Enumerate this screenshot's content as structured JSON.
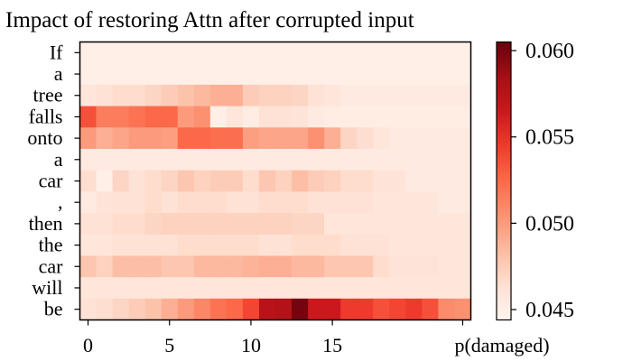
{
  "chart_data": {
    "type": "heatmap",
    "title": "Impact of restoring Attn after corrupted input",
    "rows": [
      "If",
      "a",
      "tree",
      "falls",
      "onto",
      "a",
      "car",
      ",",
      "then",
      "the",
      "car",
      "will",
      "be"
    ],
    "x_ticks": [
      "0",
      "5",
      "10",
      "15"
    ],
    "x_last_label": "p(damaged)",
    "colorbar": {
      "min": 0.0444,
      "max": 0.0605,
      "ticks": [
        "0.045",
        "0.050",
        "0.055",
        "0.060"
      ],
      "tick_values": [
        0.045,
        0.05,
        0.055,
        0.06
      ]
    },
    "colormap": "Reds",
    "values": [
      [
        0.045,
        0.045,
        0.045,
        0.045,
        0.045,
        0.045,
        0.045,
        0.045,
        0.045,
        0.045,
        0.045,
        0.045,
        0.045,
        0.045,
        0.045,
        0.045,
        0.045,
        0.045,
        0.045,
        0.045,
        0.045,
        0.045,
        0.045,
        0.045
      ],
      [
        0.045,
        0.045,
        0.045,
        0.045,
        0.045,
        0.045,
        0.045,
        0.045,
        0.045,
        0.045,
        0.045,
        0.045,
        0.045,
        0.045,
        0.045,
        0.045,
        0.045,
        0.045,
        0.045,
        0.045,
        0.045,
        0.045,
        0.045,
        0.045
      ],
      [
        0.0458,
        0.0462,
        0.0466,
        0.0466,
        0.047,
        0.0475,
        0.048,
        0.0485,
        0.049,
        0.049,
        0.0475,
        0.0472,
        0.0472,
        0.047,
        0.0462,
        0.0458,
        0.0455,
        0.0455,
        0.0455,
        0.0455,
        0.0455,
        0.0455,
        0.0455,
        0.0455
      ],
      [
        0.0535,
        0.0515,
        0.0515,
        0.052,
        0.0525,
        0.0525,
        0.05,
        0.0505,
        0.045,
        0.0458,
        0.0452,
        0.0462,
        0.0462,
        0.046,
        0.0455,
        0.0452,
        0.0452,
        0.0452,
        0.0452,
        0.0452,
        0.0452,
        0.0452,
        0.0452,
        0.0452
      ],
      [
        0.05,
        0.049,
        0.0495,
        0.05,
        0.05,
        0.0498,
        0.0525,
        0.0525,
        0.0522,
        0.0522,
        0.0498,
        0.0495,
        0.0495,
        0.0495,
        0.0505,
        0.049,
        0.047,
        0.0465,
        0.0458,
        0.0455,
        0.0455,
        0.0455,
        0.0455,
        0.0455
      ],
      [
        0.0455,
        0.0455,
        0.0455,
        0.0455,
        0.0455,
        0.0455,
        0.0455,
        0.0455,
        0.0455,
        0.0455,
        0.0455,
        0.0455,
        0.0455,
        0.0455,
        0.0455,
        0.0455,
        0.0455,
        0.0455,
        0.0455,
        0.0455,
        0.0455,
        0.0455,
        0.0455,
        0.0455
      ],
      [
        0.0465,
        0.045,
        0.047,
        0.0462,
        0.0466,
        0.047,
        0.0478,
        0.0472,
        0.0475,
        0.0475,
        0.0466,
        0.0478,
        0.0472,
        0.0482,
        0.0475,
        0.0472,
        0.0466,
        0.0466,
        0.046,
        0.046,
        0.0455,
        0.0455,
        0.0455,
        0.0455
      ],
      [
        0.0455,
        0.046,
        0.0462,
        0.0462,
        0.0466,
        0.0462,
        0.0466,
        0.0466,
        0.0466,
        0.0462,
        0.0462,
        0.0466,
        0.0466,
        0.0466,
        0.0462,
        0.0462,
        0.0462,
        0.0462,
        0.0458,
        0.0458,
        0.0458,
        0.0458,
        0.0455,
        0.0455
      ],
      [
        0.0462,
        0.0462,
        0.0466,
        0.0466,
        0.047,
        0.0472,
        0.0472,
        0.0472,
        0.0472,
        0.0472,
        0.0472,
        0.0472,
        0.0472,
        0.047,
        0.047,
        0.0458,
        0.0458,
        0.0458,
        0.0458,
        0.0458,
        0.0458,
        0.0458,
        0.0458,
        0.0458
      ],
      [
        0.0458,
        0.0458,
        0.0462,
        0.0462,
        0.0462,
        0.0462,
        0.0466,
        0.0466,
        0.0466,
        0.0466,
        0.0466,
        0.0462,
        0.0462,
        0.0466,
        0.0466,
        0.0466,
        0.0462,
        0.0462,
        0.0462,
        0.0458,
        0.0458,
        0.0458,
        0.0458,
        0.0458
      ],
      [
        0.0478,
        0.0472,
        0.0482,
        0.0482,
        0.0482,
        0.0478,
        0.0478,
        0.0485,
        0.0485,
        0.0485,
        0.0488,
        0.049,
        0.049,
        0.0485,
        0.0485,
        0.0478,
        0.0478,
        0.0478,
        0.0466,
        0.046,
        0.046,
        0.046,
        0.0458,
        0.0458
      ],
      [
        0.0458,
        0.0458,
        0.0458,
        0.0458,
        0.0458,
        0.0458,
        0.0458,
        0.0458,
        0.0458,
        0.0458,
        0.0458,
        0.0458,
        0.0458,
        0.0458,
        0.0458,
        0.0458,
        0.0458,
        0.0458,
        0.0458,
        0.0458,
        0.0458,
        0.0458,
        0.0458,
        0.0458
      ],
      [
        0.0462,
        0.0465,
        0.047,
        0.0475,
        0.048,
        0.049,
        0.05,
        0.051,
        0.052,
        0.0525,
        0.054,
        0.0575,
        0.0578,
        0.06,
        0.0565,
        0.0565,
        0.0545,
        0.0545,
        0.0535,
        0.054,
        0.0545,
        0.0535,
        0.0508,
        0.0505
      ]
    ]
  }
}
